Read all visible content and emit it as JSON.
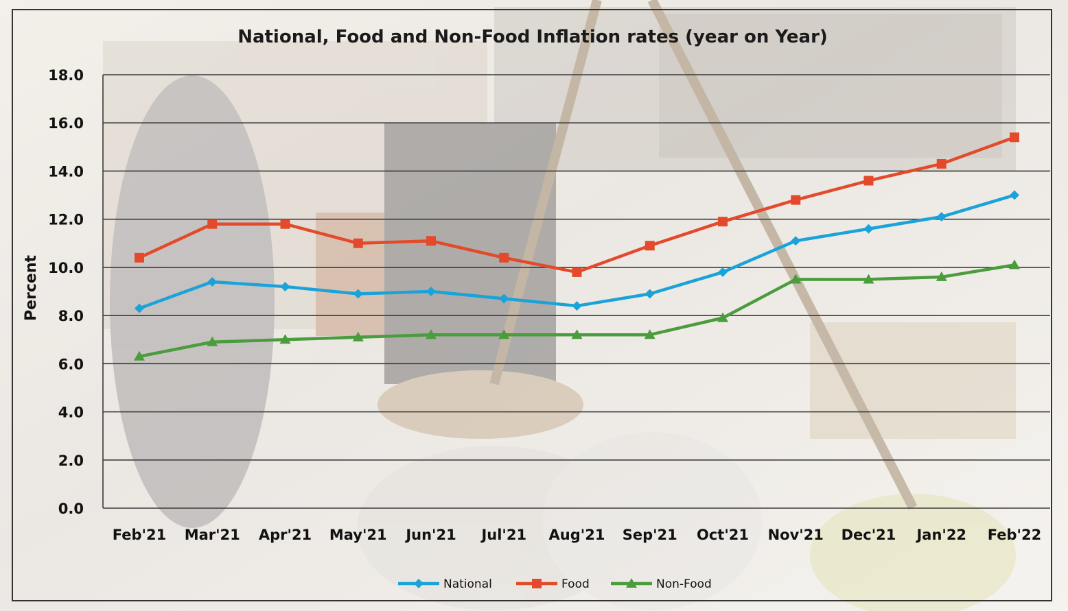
{
  "chart_data": {
    "type": "line",
    "title": "National, Food and Non-Food Inflation rates (year on Year)",
    "xlabel": "",
    "ylabel": "Percent",
    "ylim": [
      0,
      18
    ],
    "yticks": [
      "0.0",
      "2.0",
      "4.0",
      "6.0",
      "8.0",
      "10.0",
      "12.0",
      "14.0",
      "16.0",
      "18.0"
    ],
    "categories": [
      "Feb'21",
      "Mar'21",
      "Apr'21",
      "May'21",
      "Jun'21",
      "Jul'21",
      "Aug'21",
      "Sep'21",
      "Oct'21",
      "Nov'21",
      "Dec'21",
      "Jan'22",
      "Feb'22"
    ],
    "grid": "horizontal",
    "legend_position": "bottom",
    "series": [
      {
        "name": "National",
        "color": "#1aa3d9",
        "marker": "diamond",
        "values": [
          8.3,
          9.4,
          9.2,
          8.9,
          9.0,
          8.7,
          8.4,
          8.9,
          9.8,
          11.1,
          11.6,
          12.1,
          13.0
        ]
      },
      {
        "name": "Food",
        "color": "#e34a2b",
        "marker": "square",
        "values": [
          10.4,
          11.8,
          11.8,
          11.0,
          11.1,
          10.4,
          9.8,
          10.9,
          11.9,
          12.8,
          13.6,
          14.3,
          15.4
        ]
      },
      {
        "name": "Non-Food",
        "color": "#4a9c3c",
        "marker": "triangle",
        "values": [
          6.3,
          6.9,
          7.0,
          7.1,
          7.2,
          7.2,
          7.2,
          7.2,
          7.9,
          9.5,
          9.5,
          9.6,
          10.1
        ]
      }
    ]
  }
}
